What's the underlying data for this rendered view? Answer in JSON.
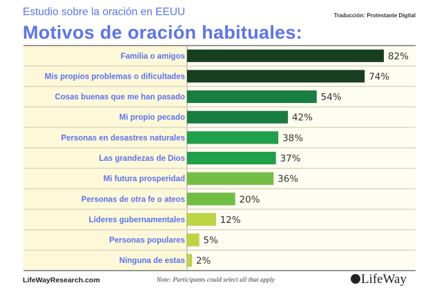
{
  "header": {
    "subtitle": "Estudio sobre la oración en EEUU",
    "credit": "Traducción: Protestante Digital",
    "title": "Motivos de oración habituales:"
  },
  "footer": {
    "site": "LifeWayResearch.com",
    "note": "Note: Participants could select all that apply",
    "logo": "LifeWay"
  },
  "chart_data": {
    "type": "bar",
    "orientation": "horizontal",
    "title": "Motivos de oración habituales:",
    "categories": [
      "Familia o amigos",
      "Mis propios problemas o dificultades",
      "Cosas buenas que me han pasado",
      "Mi propio pecado",
      "Personas en desastres naturales",
      "Las grandezas de Dios",
      "Mi futura prosperidad",
      "Personas de otra fe o ateos",
      "Líderes gubernamentales",
      "Personas populares",
      "Ninguna de estas"
    ],
    "values": [
      82,
      74,
      54,
      42,
      38,
      37,
      36,
      20,
      12,
      5,
      2
    ],
    "value_labels": [
      "82%",
      "74%",
      "54%",
      "42%",
      "38%",
      "37%",
      "36%",
      "20%",
      "12%",
      "5%",
      "2%"
    ],
    "colors": [
      "#173f1f",
      "#173f1f",
      "#177d40",
      "#177d40",
      "#1fa04a",
      "#1fa04a",
      "#72be44",
      "#72be44",
      "#bcd642",
      "#bcd642",
      "#bcd642"
    ],
    "xlim": [
      0,
      100
    ],
    "grid": false,
    "legend": "none"
  }
}
